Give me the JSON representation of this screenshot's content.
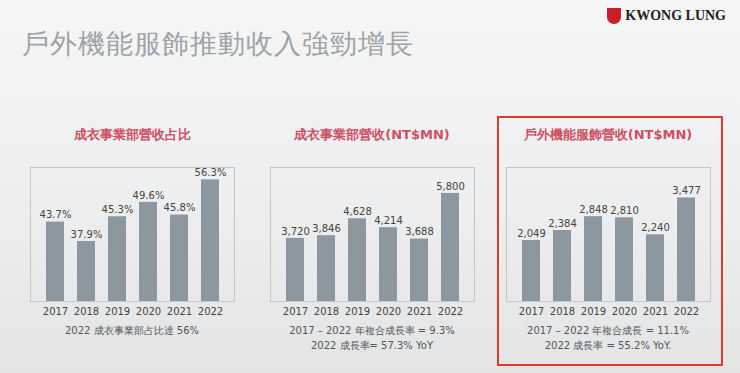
{
  "title": "戶外機能服飾推動收入強勁增長",
  "logo": "KWONG LUNG",
  "chart_data": [
    {
      "type": "bar",
      "title": "成衣事業部營收占比",
      "categories": [
        "2017",
        "2018",
        "2019",
        "2020",
        "2021",
        "2022"
      ],
      "values": [
        43.7,
        37.9,
        45.3,
        49.6,
        45.8,
        56.3
      ],
      "value_labels": [
        "43.7%",
        "37.9%",
        "45.3%",
        "49.6%",
        "45.8%",
        "56.3%"
      ],
      "data_labels": true,
      "color": "#8d979f",
      "tick_labels": "x",
      "ylim": [
        20,
        60
      ],
      "annotations": [
        "2022 成衣事業部占比達 56%"
      ]
    },
    {
      "type": "bar",
      "title": "成衣事業部營收(NT$MN)",
      "categories": [
        "2017",
        "2018",
        "2019",
        "2020",
        "2021",
        "2022"
      ],
      "values": [
        3720,
        3846,
        4628,
        4214,
        3688,
        5800
      ],
      "value_labels": [
        "3,720",
        "3,846",
        "4,628",
        "4,214",
        "3,688",
        "5,800"
      ],
      "data_labels": true,
      "color": "#8d979f",
      "tick_labels": "x",
      "ylim": [
        800,
        7000
      ],
      "annotations": [
        "2017 – 2022 年複合成長率 = 9.3%",
        "2022 成長率= 57.3% YoY"
      ]
    },
    {
      "type": "bar",
      "title": "戶外機能服飾營收(NT$MN)",
      "categories": [
        "2017",
        "2018",
        "2019",
        "2020",
        "2021",
        "2022"
      ],
      "values": [
        2049,
        2384,
        2848,
        2810,
        2240,
        3477
      ],
      "value_labels": [
        "2,049",
        "2,384",
        "2,848",
        "2,810",
        "2,240",
        "3,477"
      ],
      "data_labels": true,
      "color": "#8d979f",
      "tick_labels": "x",
      "ylim": [
        0,
        4500
      ],
      "annotations": [
        "2017 – 2022 年複合成長 = 11.1%",
        "2022 成長率 = 55.2% YoY."
      ]
    }
  ]
}
